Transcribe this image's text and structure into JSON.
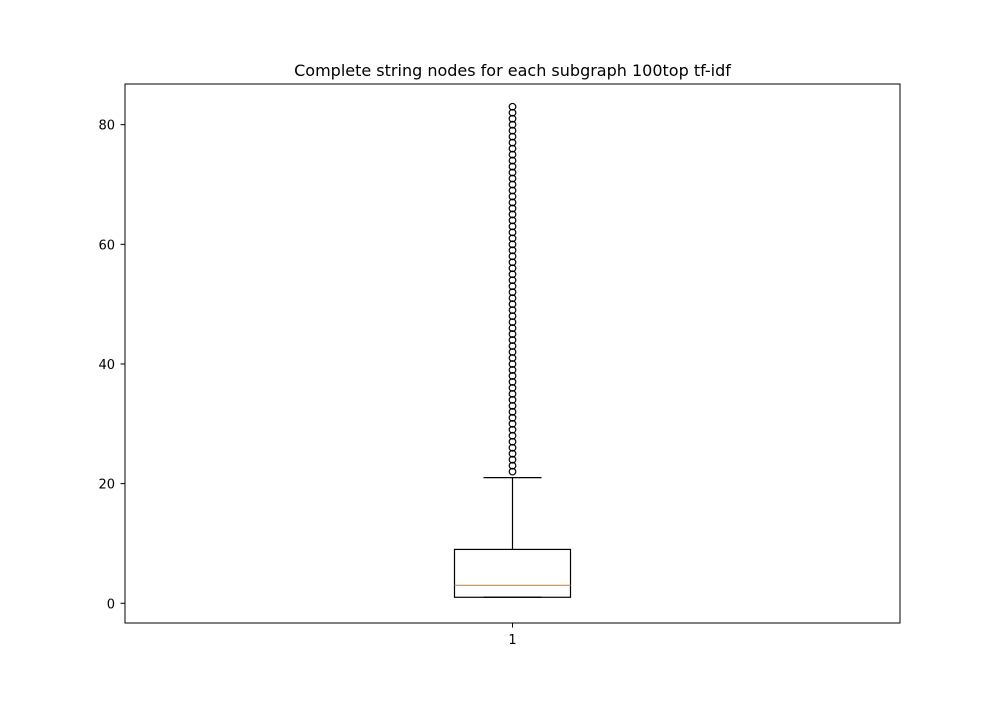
{
  "chart_data": {
    "type": "boxplot",
    "title": "Complete string nodes for each subgraph 100top tf-idf",
    "xlabel": "",
    "ylabel": "",
    "categories": [
      "1"
    ],
    "ylim": [
      -3.3,
      86.8
    ],
    "yticks": [
      0,
      20,
      40,
      60,
      80
    ],
    "grid": false,
    "colors": {
      "box": "#000000",
      "median": "#ff7f0e",
      "flier": "#000000"
    },
    "boxes": [
      {
        "label": "1",
        "whisker_low": 1,
        "q1": 1,
        "median": 3,
        "q3": 9,
        "whisker_high": 21,
        "fliers": [
          22,
          23,
          24,
          25,
          26,
          27,
          28,
          29,
          30,
          31,
          32,
          33,
          34,
          35,
          36,
          37,
          38,
          39,
          40,
          41,
          42,
          43,
          44,
          45,
          46,
          47,
          48,
          49,
          50,
          51,
          52,
          53,
          54,
          55,
          56,
          57,
          58,
          59,
          60,
          61,
          62,
          63,
          64,
          65,
          66,
          67,
          68,
          69,
          70,
          71,
          72,
          73,
          74,
          75,
          76,
          77,
          78,
          79,
          80,
          81,
          82,
          83
        ]
      }
    ]
  }
}
